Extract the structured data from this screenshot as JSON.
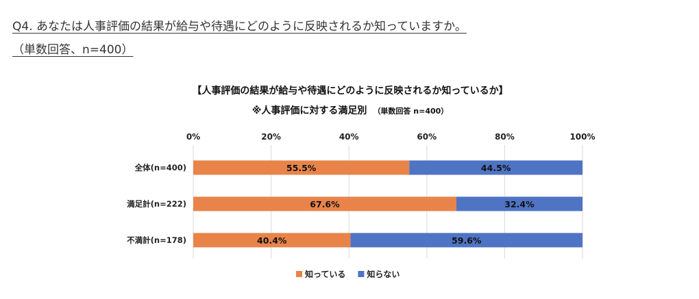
{
  "heading": {
    "line1": "Q4. あなたは人事評価の結果が給与や待遇にどのように反映されるか知っていますか。",
    "line2": "（単数回答、n=400）"
  },
  "chart_data": {
    "type": "bar",
    "orientation": "horizontal",
    "stacked": true,
    "percent_stacked": true,
    "title": "【人事評価の結果が給与や待遇にどのように反映されるか知っているか】",
    "subtitle_main": "※人事評価に対する満足別",
    "subtitle_note": "（単数回答 n=400）",
    "categories": [
      "全体(n=400)",
      "満足計(n=222)",
      "不満計(n=178)"
    ],
    "series": [
      {
        "name": "知っている",
        "values": [
          55.5,
          67.6,
          40.4
        ],
        "color": "#E8844A"
      },
      {
        "name": "知らない",
        "values": [
          44.5,
          32.4,
          59.6
        ],
        "color": "#4F74C4"
      }
    ],
    "xlim": [
      0,
      100
    ],
    "xticks": [
      "0%",
      "20%",
      "40%",
      "60%",
      "80%",
      "100%"
    ],
    "x_tick_position": "top",
    "grid": true,
    "grid_color": "#d9d9d9",
    "legend_position": "bottom-center"
  }
}
